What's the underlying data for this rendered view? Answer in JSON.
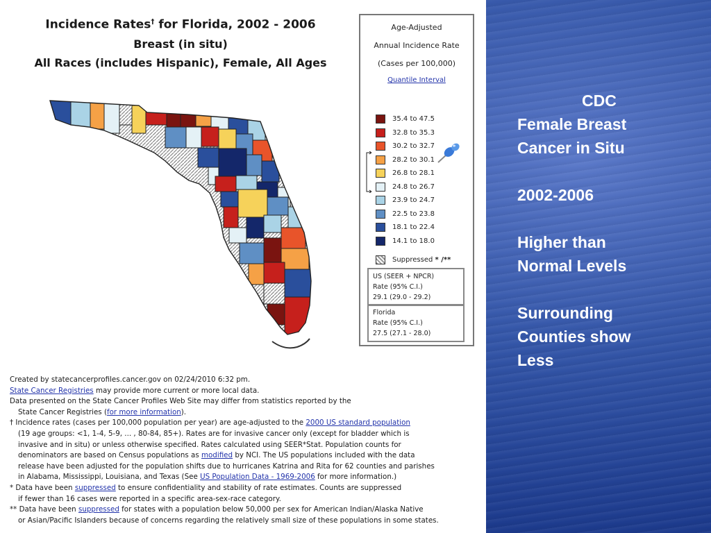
{
  "title": {
    "line1": "Incidence Rates",
    "dagger": "†",
    "line1b": " for Florida, 2002 - 2006",
    "line2": "Breast (in situ)",
    "line3": "All Races (includes Hispanic), Female, All Ages"
  },
  "legend": {
    "h1": "Age-Adjusted",
    "h2": "Annual Incidence Rate",
    "h3": "(Cases per 100,000)",
    "link": "Quantile Interval",
    "items": [
      {
        "label": "35.4 to 47.5",
        "color": "#7a1410"
      },
      {
        "label": "32.8 to 35.3",
        "color": "#c6201c"
      },
      {
        "label": "30.2 to 32.7",
        "color": "#e8542a"
      },
      {
        "label": "28.2 to 30.1",
        "color": "#f5a146"
      },
      {
        "label": "26.8 to 28.1",
        "color": "#f6d25a"
      },
      {
        "label": "24.8 to 26.7",
        "color": "#e4f1f6"
      },
      {
        "label": "23.9 to 24.7",
        "color": "#aad3e6"
      },
      {
        "label": "22.5 to 23.8",
        "color": "#5f8fc4"
      },
      {
        "label": "18.1 to 22.4",
        "color": "#2a4f9c"
      },
      {
        "label": "14.1 to 18.0",
        "color": "#14276a"
      }
    ],
    "suppressed": "Suppressed",
    "suppressed_marks": "* /**",
    "us_box": [
      "US (SEER + NPCR)",
      "Rate (95% C.I.)",
      "29.1  (29.0 - 29.2)"
    ],
    "fl_box": [
      "Florida",
      "Rate (95% C.I.)",
      "27.5  (27.1 - 28.0)"
    ]
  },
  "footnotes": {
    "created": "Created by statecancerprofiles.cancer.gov on 02/24/2010 6:32 pm.",
    "registries_link": "State Cancer Registries",
    "registries_rest": " may provide more current or more local data.",
    "differ1": "Data presented on the State Cancer Profiles Web Site may differ from statistics reported by the",
    "differ2a": "State Cancer Registries (",
    "differ2_link": "for more information",
    "differ2b": ").",
    "dagger_a": "†  Incidence rates (cases per 100,000 population per year) are age-adjusted to the ",
    "dagger_link": "2000 US standard population",
    "dagger2": "(19 age groups: <1, 1-4, 5-9, ... , 80-84, 85+). Rates are for invasive cancer only (except for bladder which is",
    "dagger3": "invasive and in situ) or unless otherwise specified. Rates calculated using SEER*Stat. Population counts for",
    "dagger4a": "denominators are based on Census populations as ",
    "dagger4_link": "modified",
    "dagger4b": " by NCI. The US populations included with the data",
    "dagger5": "release have been adjusted for the population shifts due to hurricanes Katrina and Rita for 62 counties and parishes",
    "dagger6a": "in Alabama, Mississippi, Louisiana, and Texas (See ",
    "dagger6_link": "US Population Data - 1969-2006",
    "dagger6b": " for more information.)",
    "star1a": "*  Data have been ",
    "star1_link": "suppressed",
    "star1b": " to ensure confidentiality and stability of rate estimates. Counts are suppressed",
    "star2": "if fewer than 16 cases were reported in a specific area-sex-race category.",
    "dstar1a": "** Data have been ",
    "dstar1_link": "suppressed",
    "dstar1b": "  for states with a population below 50,000 per sex for American Indian/Alaska Native",
    "dstar2": "or Asian/Pacific Islanders because of concerns regarding the relatively small size of these populations in some states."
  },
  "side": {
    "l1": "CDC",
    "l2": "Female Breast",
    "l3": "Cancer in Situ",
    "l4": "2002-2006",
    "l5": "Higher than",
    "l6": "Normal Levels",
    "l7": "Surrounding",
    "l8": "Counties show",
    "l9": "Less"
  }
}
